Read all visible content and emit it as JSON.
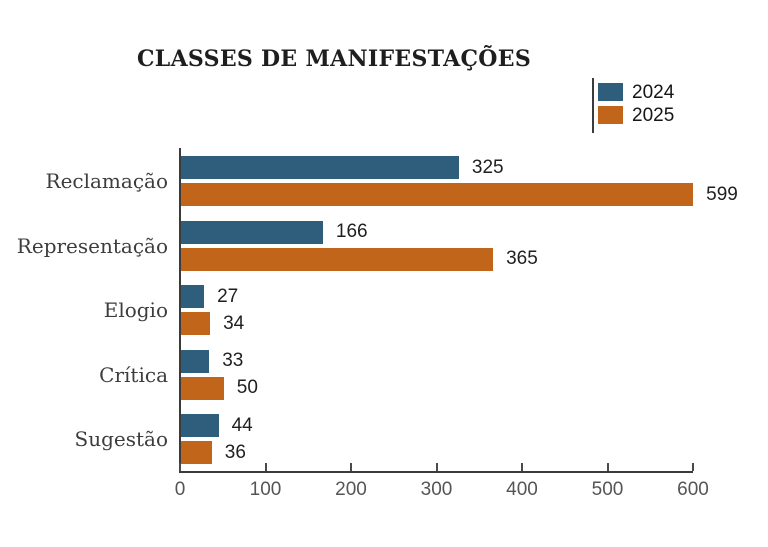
{
  "chart_data": {
    "type": "bar",
    "orientation": "horizontal",
    "title": "CLASSES DE MANIFESTAÇÕES",
    "categories": [
      "Reclamação",
      "Representação",
      "Elogio",
      "Crítica",
      "Sugestão"
    ],
    "series": [
      {
        "name": "2024",
        "color": "#2e5e7c",
        "values": [
          325,
          166,
          27,
          33,
          44
        ]
      },
      {
        "name": "2025",
        "color": "#c0651a",
        "values": [
          599,
          365,
          34,
          50,
          36
        ]
      }
    ],
    "xlim": [
      0,
      600
    ],
    "x_ticks": [
      0,
      100,
      200,
      300,
      400,
      500,
      600
    ],
    "legend_position": "top-right",
    "grid": false,
    "value_labels": true,
    "xlabel": "",
    "ylabel": ""
  },
  "colors": {
    "series_2024": "#2e5e7c",
    "series_2025": "#c0651a",
    "axis": "#3b3b3b",
    "value_text": "#1f1f1f",
    "tick_text": "#555555",
    "background": "#ffffff"
  }
}
